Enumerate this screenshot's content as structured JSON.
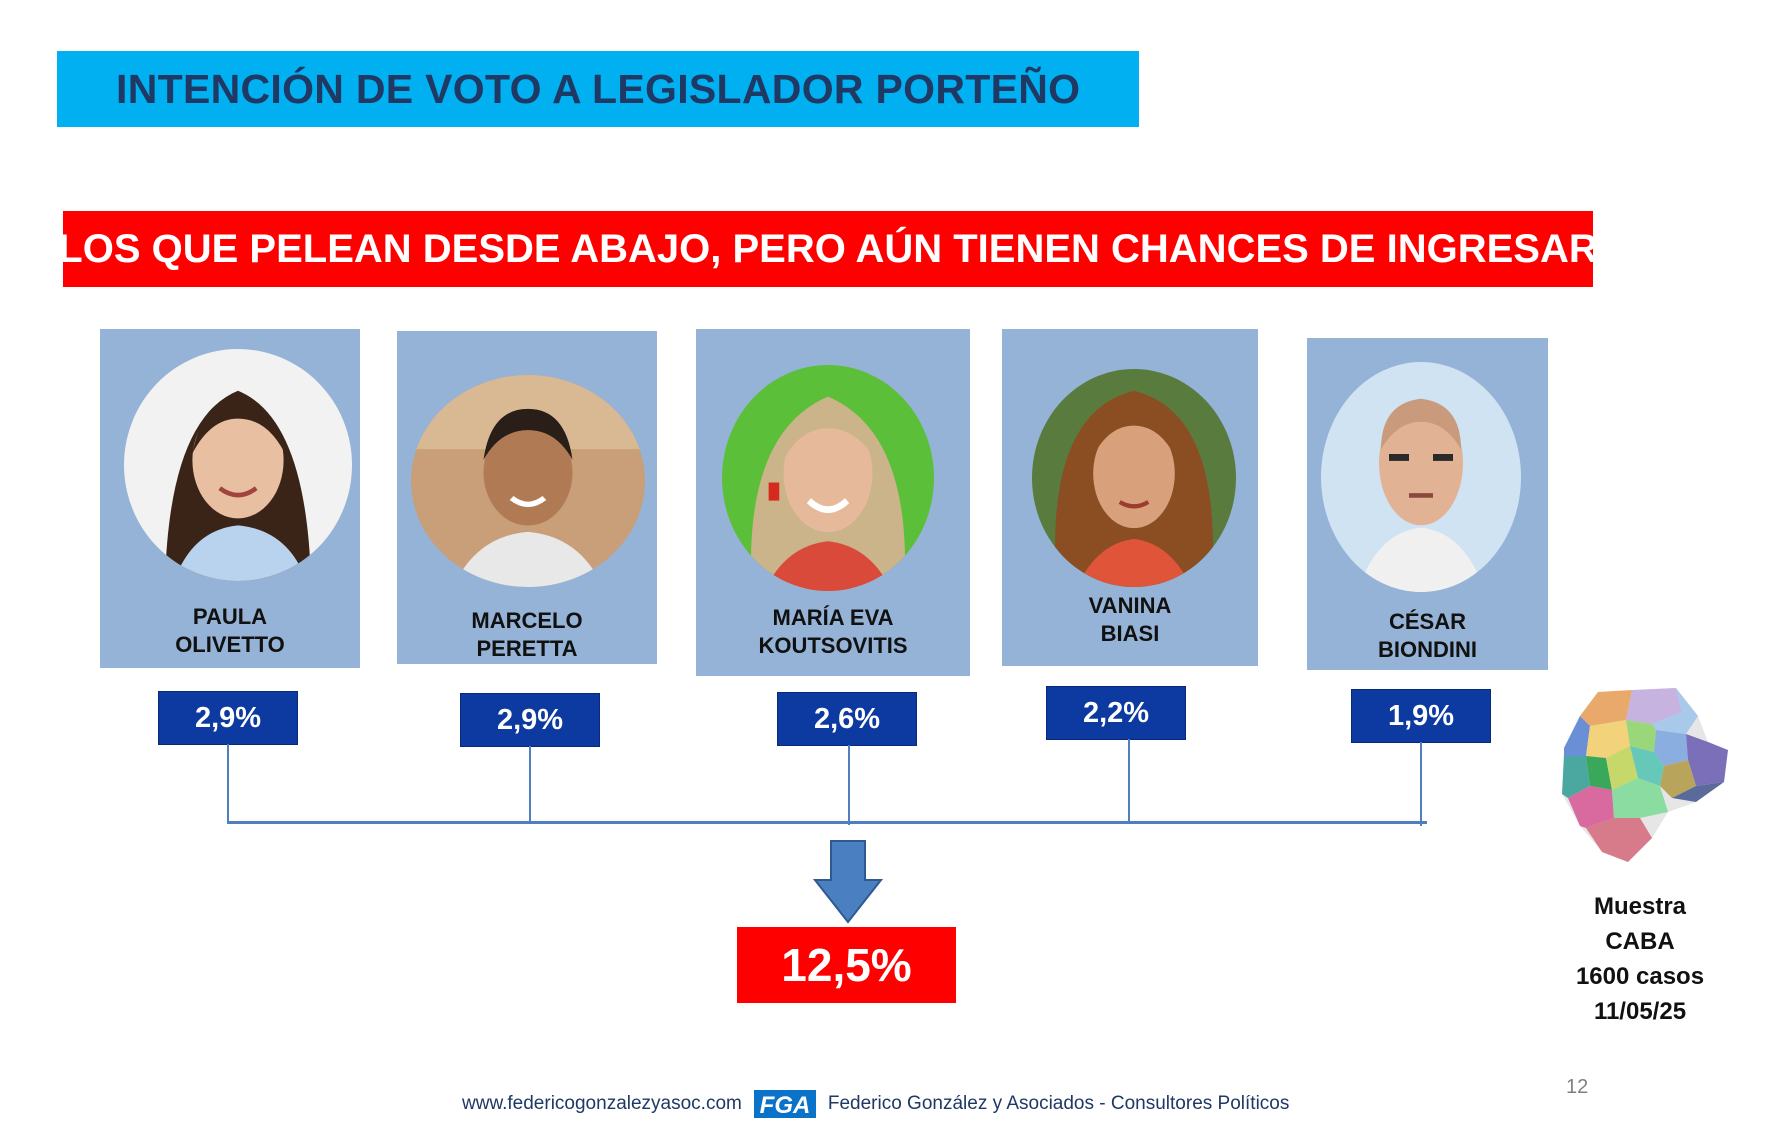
{
  "header": {
    "title": "INTENCIÓN DE VOTO A LEGISLADOR PORTEÑO",
    "subtitle": "LOS QUE PELEAN DESDE ABAJO, PERO AÚN TIENEN CHANCES DE INGRESAR"
  },
  "candidates": [
    {
      "name_line1": "PAULA",
      "name_line2": "OLIVETTO",
      "percentage": "2,9%",
      "value": 2.9
    },
    {
      "name_line1": "MARCELO",
      "name_line2": "PERETTA",
      "percentage": "2,9%",
      "value": 2.9
    },
    {
      "name_line1": "MARÍA EVA",
      "name_line2": "KOUTSOVITIS",
      "percentage": "2,6%",
      "value": 2.6
    },
    {
      "name_line1": "VANINA",
      "name_line2": "BIASI",
      "percentage": "2,2%",
      "value": 2.2
    },
    {
      "name_line1": "CÉSAR",
      "name_line2": "BIONDINI",
      "percentage": "1,9%",
      "value": 1.9
    }
  ],
  "total": {
    "label": "12,5%",
    "value": 12.5
  },
  "sample": {
    "line1": "Muestra",
    "line2": "CABA",
    "line3": "1600 casos",
    "line4": "11/05/25"
  },
  "footer": {
    "website": "www.federicogonzalezyasoc.com",
    "logo_text": "FGA",
    "company": "Federico González y Asociados - Consultores Políticos"
  },
  "page_number": "12",
  "colors": {
    "title_bg": "#00b0f0",
    "title_text": "#1f3864",
    "subtitle_bg": "#ff0000",
    "card_bg": "#95b3d7",
    "pct_box": "#0d3aa0",
    "connector": "#4f7fc0",
    "total_bg": "#ff0000"
  }
}
